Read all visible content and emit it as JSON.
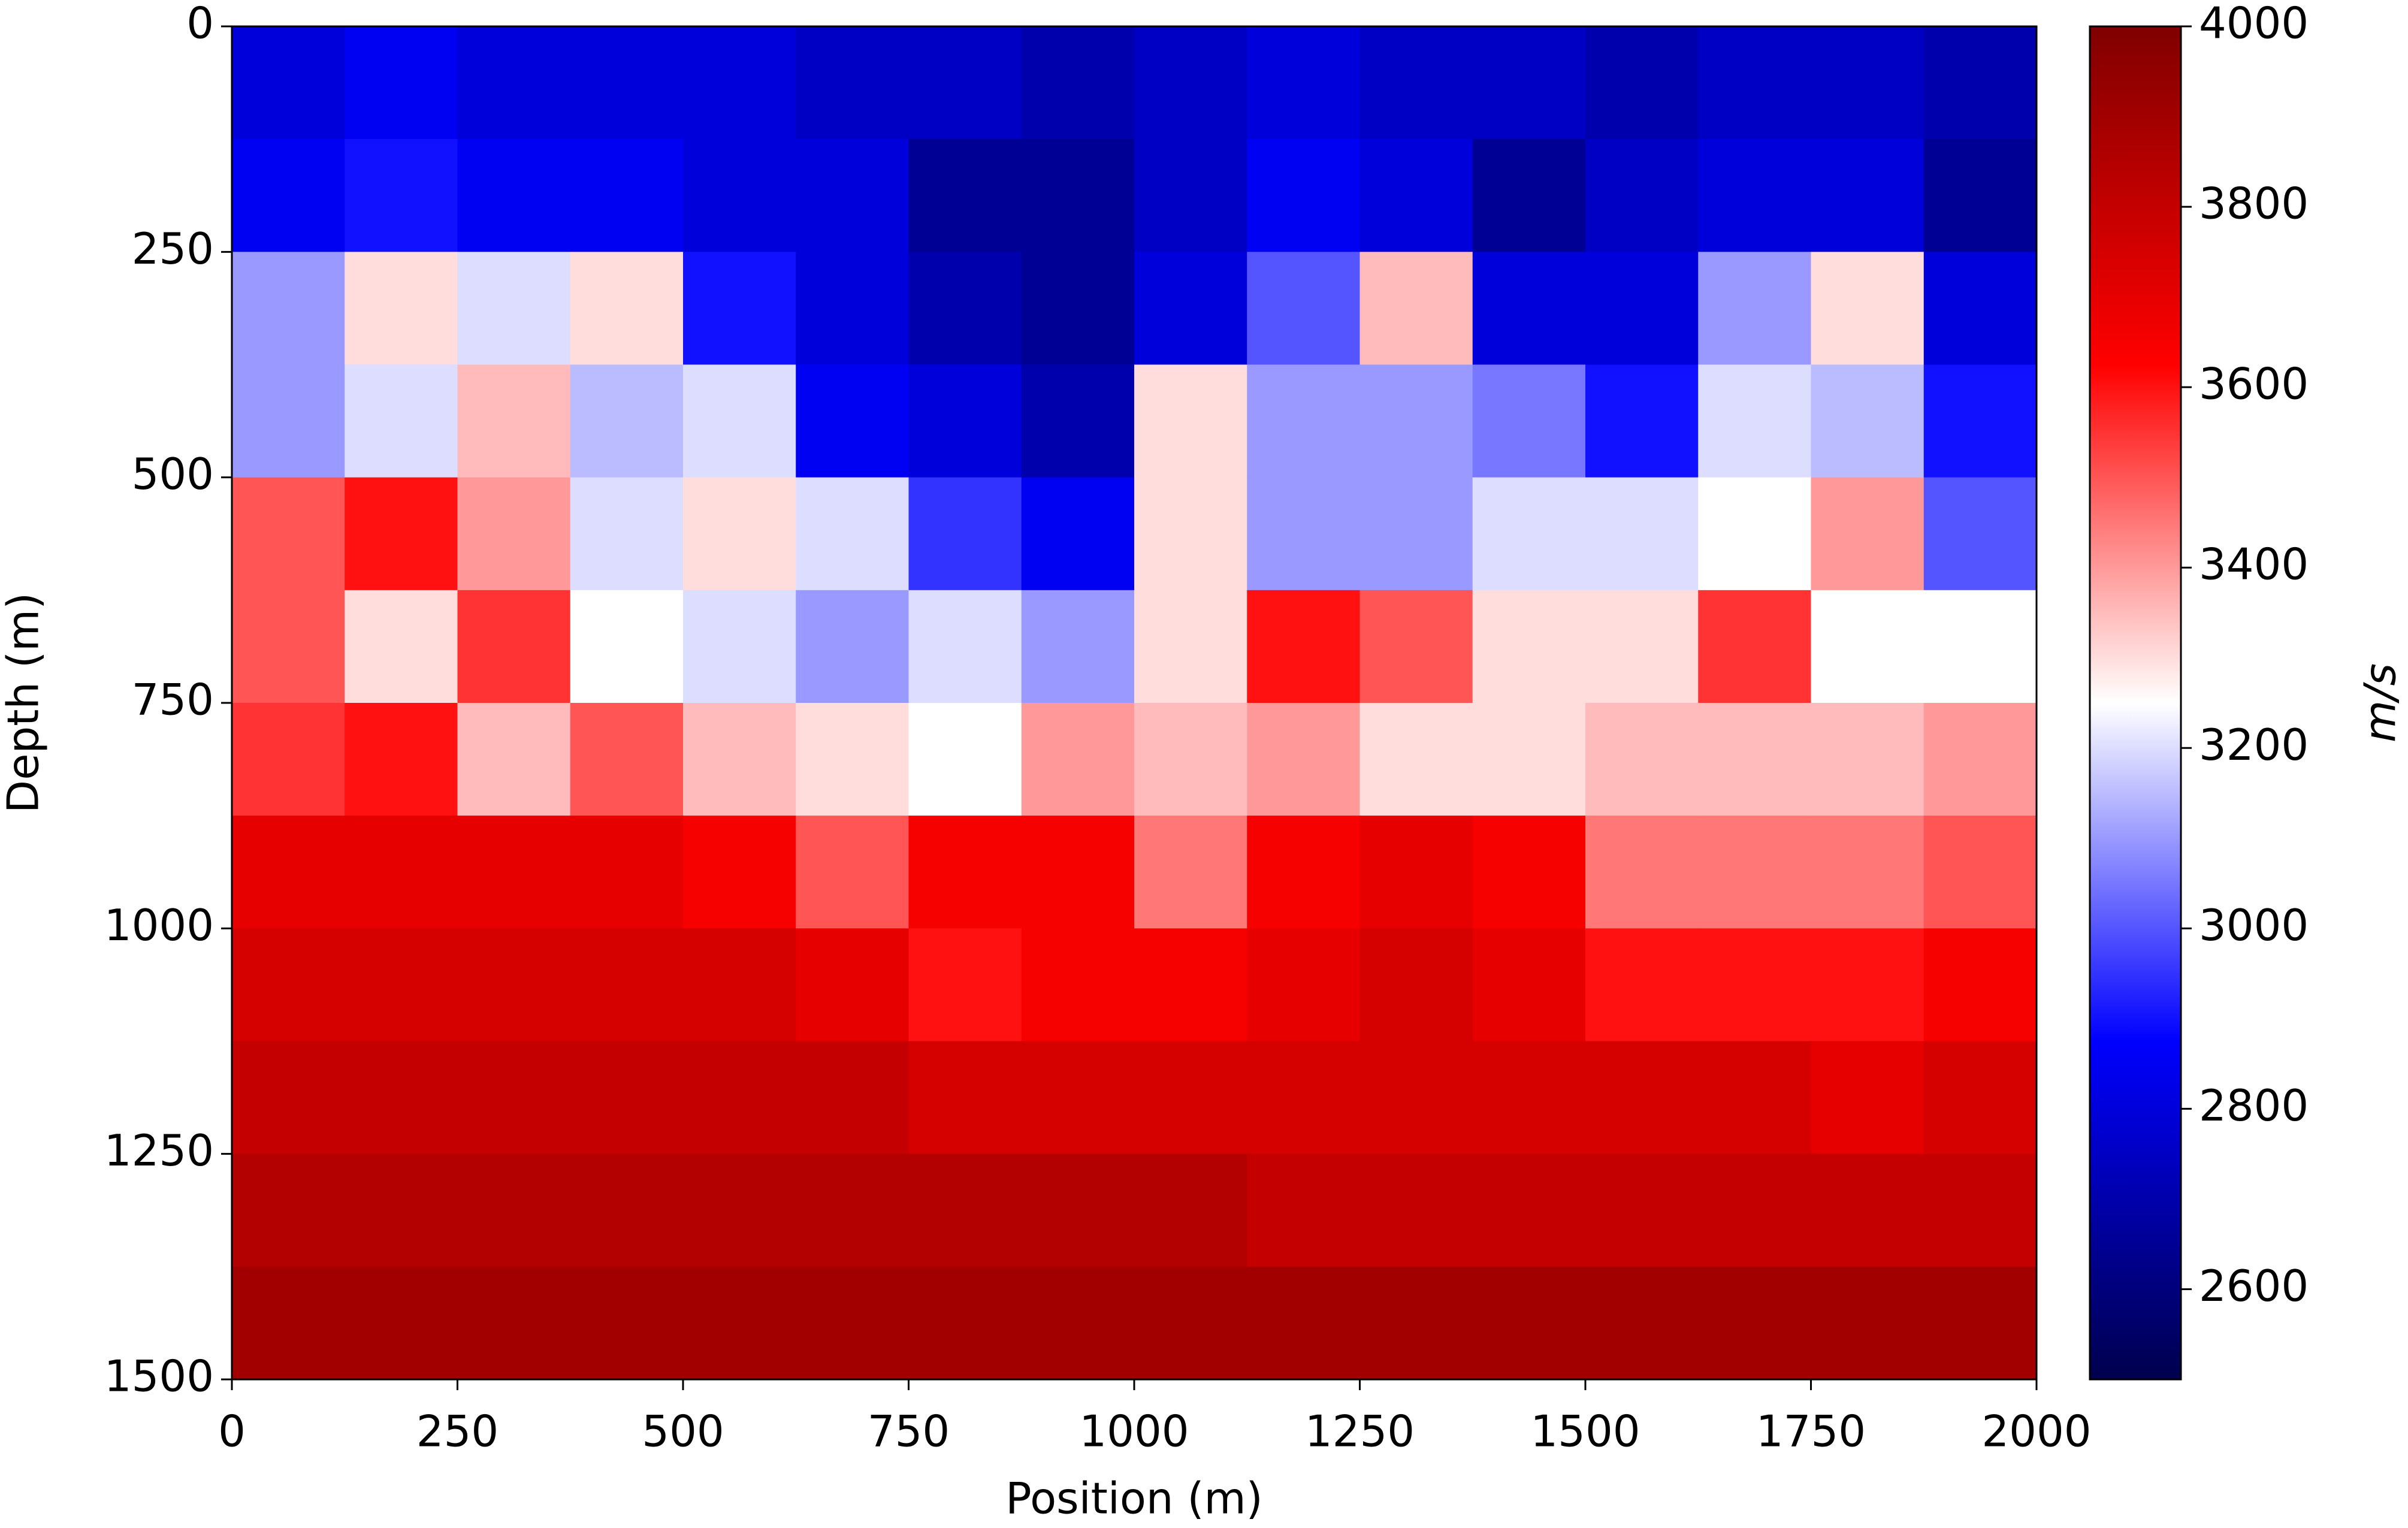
{
  "chart_data": {
    "type": "heatmap",
    "xlabel": "Position (m)",
    "ylabel": "Depth (m)",
    "colorbar_label": "m/s",
    "xlim": [
      0,
      2000
    ],
    "xticks": [
      0,
      250,
      500,
      750,
      1000,
      1250,
      1500,
      1750,
      2000
    ],
    "ylim": [
      1500,
      0
    ],
    "yticks": [
      0,
      250,
      500,
      750,
      1000,
      1250,
      1500
    ],
    "clim": [
      2500,
      4000
    ],
    "cticks": [
      2600,
      2800,
      3000,
      3200,
      3400,
      3600,
      3800,
      4000
    ],
    "colormap": "seismic",
    "z": [
      [
        2800,
        2850,
        2800,
        2800,
        2800,
        2750,
        2750,
        2700,
        2750,
        2800,
        2750,
        2750,
        2700,
        2750,
        2750,
        2700
      ],
      [
        2850,
        2900,
        2850,
        2850,
        2800,
        2800,
        2650,
        2650,
        2750,
        2850,
        2800,
        2650,
        2750,
        2800,
        2800,
        2650
      ],
      [
        3100,
        3300,
        3200,
        3300,
        2900,
        2800,
        2700,
        2650,
        2800,
        3000,
        3350,
        2800,
        2800,
        3100,
        3300,
        2800
      ],
      [
        3100,
        3200,
        3350,
        3150,
        3200,
        2850,
        2800,
        2700,
        3300,
        3100,
        3100,
        3050,
        2900,
        3200,
        3150,
        2900
      ],
      [
        3500,
        3600,
        3400,
        3200,
        3300,
        3200,
        2950,
        2850,
        3300,
        3100,
        3100,
        3200,
        3200,
        3250,
        3400,
        3000
      ],
      [
        3500,
        3300,
        3550,
        3250,
        3200,
        3100,
        3200,
        3100,
        3300,
        3600,
        3500,
        3300,
        3300,
        3550,
        3250,
        3250
      ],
      [
        3550,
        3600,
        3350,
        3500,
        3350,
        3300,
        3250,
        3400,
        3350,
        3400,
        3300,
        3300,
        3350,
        3350,
        3350,
        3400
      ],
      [
        3700,
        3700,
        3700,
        3700,
        3650,
        3500,
        3650,
        3650,
        3450,
        3650,
        3700,
        3650,
        3450,
        3450,
        3450,
        3500
      ],
      [
        3750,
        3750,
        3750,
        3750,
        3750,
        3700,
        3600,
        3650,
        3650,
        3700,
        3750,
        3700,
        3600,
        3600,
        3600,
        3650
      ],
      [
        3800,
        3800,
        3800,
        3800,
        3800,
        3800,
        3750,
        3750,
        3750,
        3750,
        3750,
        3750,
        3750,
        3750,
        3700,
        3750
      ],
      [
        3850,
        3850,
        3850,
        3850,
        3850,
        3850,
        3850,
        3850,
        3850,
        3800,
        3800,
        3800,
        3800,
        3800,
        3800,
        3800
      ],
      [
        3900,
        3900,
        3900,
        3900,
        3900,
        3900,
        3900,
        3900,
        3900,
        3900,
        3900,
        3900,
        3900,
        3900,
        3900,
        3900
      ]
    ]
  }
}
